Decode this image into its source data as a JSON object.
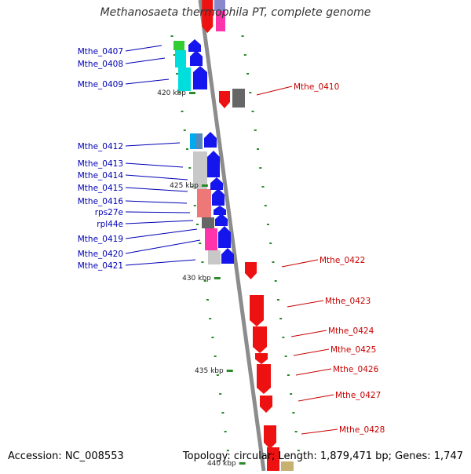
{
  "title": "Methanosaeta thermophila PT, complete genome",
  "footer": {
    "accession": "Accession: NC_008553",
    "topology": "Topology: circular; Length: 1,879,471 bp; Genes: 1,747"
  },
  "colors": {
    "backbone": "#8c8c8c",
    "ruler": "#2a8a2a",
    "label_left": "#0000b4",
    "label_right": "#c80000"
  },
  "ruler": [
    {
      "label": "420 kbp",
      "kbp": 420
    },
    {
      "label": "425 kbp",
      "kbp": 425
    },
    {
      "label": "430 kbp",
      "kbp": 430
    },
    {
      "label": "435 kbp",
      "kbp": 435
    },
    {
      "label": "440 kbp",
      "kbp": 440
    }
  ],
  "left_genes": [
    {
      "name": "Mthe_0407",
      "kbp": 418.3
    },
    {
      "name": "Mthe_0408",
      "kbp": 418.8
    },
    {
      "name": "Mthe_0409",
      "kbp": 419.6
    },
    {
      "name": "Mthe_0412",
      "kbp": 423.2
    },
    {
      "name": "Mthe_0413",
      "kbp": 424.2
    },
    {
      "name": "Mthe_0414",
      "kbp": 424.9
    },
    {
      "name": "Mthe_0415",
      "kbp": 425.5
    },
    {
      "name": "Mthe_0416",
      "kbp": 426.2
    },
    {
      "name": "rps27e",
      "kbp": 426.7
    },
    {
      "name": "rpl44e",
      "kbp": 427.2
    },
    {
      "name": "Mthe_0419",
      "kbp": 427.9
    },
    {
      "name": "Mthe_0420",
      "kbp": 428.6
    },
    {
      "name": "Mthe_0421",
      "kbp": 429.2
    }
  ],
  "right_genes": [
    {
      "name": "Mthe_0410",
      "kbp": 420.2
    },
    {
      "name": "Mthe_0422",
      "kbp": 429.8
    },
    {
      "name": "Mthe_0423",
      "kbp": 431.4
    },
    {
      "name": "Mthe_0424",
      "kbp": 432.6
    },
    {
      "name": "Mthe_0425",
      "kbp": 433.5
    },
    {
      "name": "Mthe_0426",
      "kbp": 434.4
    },
    {
      "name": "Mthe_0427",
      "kbp": 435.6
    },
    {
      "name": "Mthe_0428",
      "kbp": 437.4
    }
  ]
}
